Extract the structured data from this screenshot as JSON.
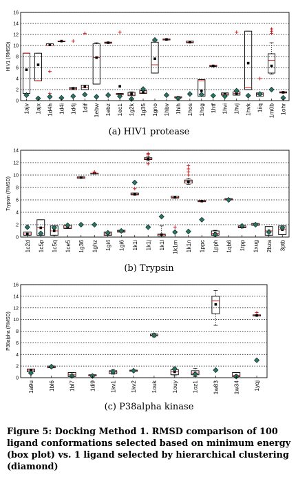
{
  "chart_data": [
    {
      "type": "box",
      "caption": "(a) HIV1 protease",
      "ylabel": "HIV1 (RMSD)",
      "ylim": [
        0,
        16
      ],
      "yticks": [
        0,
        2,
        4,
        6,
        8,
        10,
        12,
        14,
        16
      ],
      "grid": true,
      "categories": [
        "1ajv",
        "1ajx",
        "1d4h",
        "1d4i",
        "1d4j",
        "1dif",
        "1ebw",
        "1ebz",
        "1ec1",
        "1g2k",
        "1g35",
        "1gno",
        "1hbv",
        "1hih",
        "1hos",
        "1hsg",
        "1htf",
        "1hvi",
        "1hvj",
        "1hvk",
        "1iiq",
        "1m0b",
        "1ohr"
      ],
      "boxes": [
        {
          "q1": 1.3,
          "q3": 8.6,
          "median": 8.6,
          "mean": 5.6,
          "wlo": 1.3,
          "whi": 8.6,
          "outliers": []
        },
        {
          "q1": 3.6,
          "q3": 8.6,
          "median": 3.6,
          "mean": 6.5,
          "wlo": 3.6,
          "whi": 8.6,
          "outliers": []
        },
        {
          "q1": 10.0,
          "q3": 10.3,
          "median": 10.0,
          "mean": 10.1,
          "wlo": 10.0,
          "whi": 10.3,
          "outliers": [
            5.3,
            1.3
          ]
        },
        {
          "q1": 10.8,
          "q3": 10.8,
          "median": 10.8,
          "mean": 10.8,
          "wlo": 10.8,
          "whi": 10.8,
          "outliers": []
        },
        {
          "q1": 2.0,
          "q3": 2.4,
          "median": 2.2,
          "mean": 2.2,
          "wlo": 2.0,
          "whi": 2.4,
          "outliers": [
            10.8
          ]
        },
        {
          "q1": 2.0,
          "q3": 2.8,
          "median": 2.4,
          "mean": 2.5,
          "wlo": 2.0,
          "whi": 2.8,
          "outliers": [
            12.2
          ]
        },
        {
          "q1": 3.0,
          "q3": 10.3,
          "median": 7.8,
          "mean": 7.8,
          "wlo": 3.0,
          "whi": 10.5,
          "outliers": []
        },
        {
          "q1": 10.4,
          "q3": 10.6,
          "median": 10.5,
          "mean": 10.5,
          "wlo": 10.4,
          "whi": 10.6,
          "outliers": []
        },
        {
          "q1": 1.1,
          "q3": 1.3,
          "median": 1.2,
          "mean": 2.6,
          "wlo": 1.1,
          "whi": 1.3,
          "outliers": [
            12.4
          ]
        },
        {
          "q1": 0.9,
          "q3": 1.5,
          "median": 1.2,
          "mean": 1.2,
          "wlo": 0.9,
          "whi": 1.6,
          "outliers": []
        },
        {
          "q1": 1.3,
          "q3": 1.8,
          "median": 1.5,
          "mean": 1.5,
          "wlo": 1.3,
          "whi": 1.8,
          "outliers": []
        },
        {
          "q1": 5.0,
          "q3": 10.6,
          "median": 6.5,
          "mean": 7.6,
          "wlo": 5.0,
          "whi": 10.8,
          "outliers": []
        },
        {
          "q1": 11.0,
          "q3": 11.2,
          "median": 11.1,
          "mean": 11.1,
          "wlo": 11.0,
          "whi": 11.2,
          "outliers": []
        },
        {
          "q1": 0.5,
          "q3": 0.7,
          "median": 0.6,
          "mean": 0.6,
          "wlo": 0.5,
          "whi": 0.7,
          "outliers": []
        },
        {
          "q1": 10.5,
          "q3": 10.8,
          "median": 10.6,
          "mean": 10.6,
          "wlo": 10.5,
          "whi": 10.8,
          "outliers": []
        },
        {
          "q1": 0.8,
          "q3": 3.8,
          "median": 3.6,
          "mean": 1.8,
          "wlo": 0.8,
          "whi": 3.8,
          "outliers": []
        },
        {
          "q1": 6.2,
          "q3": 6.4,
          "median": 6.3,
          "mean": 6.3,
          "wlo": 6.2,
          "whi": 6.4,
          "outliers": []
        },
        {
          "q1": 1.0,
          "q3": 1.4,
          "median": 1.2,
          "mean": 1.2,
          "wlo": 1.0,
          "whi": 1.4,
          "outliers": []
        },
        {
          "q1": 1.0,
          "q3": 1.6,
          "median": 1.3,
          "mean": 1.3,
          "wlo": 1.0,
          "whi": 1.6,
          "outliers": [
            12.4
          ]
        },
        {
          "q1": 2.0,
          "q3": 12.6,
          "median": 2.4,
          "mean": 6.8,
          "wlo": 2.0,
          "whi": 12.6,
          "outliers": []
        },
        {
          "q1": 0.8,
          "q3": 1.4,
          "median": 1.1,
          "mean": 1.1,
          "wlo": 0.8,
          "whi": 1.4,
          "outliers": [
            4.0
          ]
        },
        {
          "q1": 5.0,
          "q3": 8.5,
          "median": 7.3,
          "mean": 6.3,
          "wlo": 4.8,
          "whi": 10.5,
          "outliers": [
            12.2,
            12.6,
            13.0
          ]
        },
        {
          "q1": 1.4,
          "q3": 1.6,
          "median": 1.5,
          "mean": 1.5,
          "wlo": 1.4,
          "whi": 1.6,
          "outliers": []
        }
      ],
      "diamonds": [
        1.0,
        0.4,
        0.7,
        0.5,
        0.8,
        1.1,
        0.7,
        1.0,
        0.8,
        0.3,
        2.1,
        11.0,
        1.0,
        0.4,
        1.2,
        1.1,
        0.9,
        0.8,
        1.8,
        0.9,
        1.2,
        2.0,
        0.5
      ]
    },
    {
      "type": "box",
      "caption": "(b) Trypsin",
      "ylabel": "Trypsin (RMSD)",
      "ylim": [
        0,
        14
      ],
      "yticks": [
        0,
        2,
        4,
        6,
        8,
        10,
        12,
        14
      ],
      "grid": true,
      "categories": [
        "1c2d",
        "1c5p",
        "1c5q",
        "1ce5",
        "1g36",
        "1ghz",
        "1gi4",
        "1gi6",
        "1k1i",
        "1k1j",
        "1k1l",
        "1k1m",
        "1k1n",
        "1ppc",
        "1pph",
        "1qb6",
        "1tpp",
        "1xug",
        "2bza",
        "3ptb"
      ],
      "boxes": [
        {
          "q1": 0.3,
          "q3": 0.8,
          "median": 0.5,
          "mean": 0.5,
          "wlo": 0.3,
          "whi": 0.8,
          "outliers": []
        },
        {
          "q1": 0.3,
          "q3": 2.8,
          "median": 1.5,
          "mean": 1.5,
          "wlo": 0.3,
          "whi": 2.8,
          "outliers": []
        },
        {
          "q1": 0.3,
          "q3": 1.8,
          "median": 1.0,
          "mean": 1.0,
          "wlo": 0.3,
          "whi": 1.8,
          "outliers": []
        },
        {
          "q1": 1.4,
          "q3": 1.9,
          "median": 1.6,
          "mean": 1.6,
          "wlo": 1.4,
          "whi": 1.9,
          "outliers": []
        },
        {
          "q1": 9.5,
          "q3": 9.7,
          "median": 9.6,
          "mean": 9.6,
          "wlo": 9.5,
          "whi": 9.7,
          "outliers": []
        },
        {
          "q1": 10.3,
          "q3": 10.3,
          "median": 10.3,
          "mean": 10.3,
          "wlo": 10.3,
          "whi": 10.3,
          "outliers": [
            10.5
          ]
        },
        {
          "q1": 0.3,
          "q3": 0.8,
          "median": 0.5,
          "mean": 0.5,
          "wlo": 0.3,
          "whi": 0.8,
          "outliers": []
        },
        {
          "q1": 0.8,
          "q3": 1.1,
          "median": 0.9,
          "mean": 0.9,
          "wlo": 0.8,
          "whi": 1.1,
          "outliers": []
        },
        {
          "q1": 6.8,
          "q3": 7.1,
          "median": 6.9,
          "mean": 6.9,
          "wlo": 6.8,
          "whi": 7.1,
          "outliers": [
            7.8
          ]
        },
        {
          "q1": 12.5,
          "q3": 12.8,
          "median": 12.6,
          "mean": 12.6,
          "wlo": 12.3,
          "whi": 13.0,
          "outliers": [
            11.8,
            13.3,
            13.5
          ]
        },
        {
          "q1": 0.2,
          "q3": 0.5,
          "median": 0.4,
          "mean": 0.4,
          "wlo": 0.0,
          "whi": 1.8,
          "outliers": []
        },
        {
          "q1": 6.3,
          "q3": 6.6,
          "median": 6.4,
          "mean": 6.4,
          "wlo": 6.3,
          "whi": 6.6,
          "outliers": [
            1.6
          ]
        },
        {
          "q1": 8.7,
          "q3": 9.2,
          "median": 9.0,
          "mean": 8.9,
          "wlo": 8.5,
          "whi": 9.5,
          "outliers": [
            10.0,
            10.5,
            11.0,
            11.5
          ]
        },
        {
          "q1": 5.7,
          "q3": 5.9,
          "median": 5.8,
          "mean": 5.8,
          "wlo": 5.7,
          "whi": 5.9,
          "outliers": []
        },
        {
          "q1": 0.3,
          "q3": 1.0,
          "median": 0.6,
          "mean": 0.6,
          "wlo": 0.2,
          "whi": 1.1,
          "outliers": []
        },
        {
          "q1": 6.0,
          "q3": 6.2,
          "median": 6.1,
          "mean": 6.1,
          "wlo": 6.0,
          "whi": 6.2,
          "outliers": []
        },
        {
          "q1": 1.5,
          "q3": 1.8,
          "median": 1.6,
          "mean": 1.6,
          "wlo": 1.5,
          "whi": 1.8,
          "outliers": []
        },
        {
          "q1": 1.9,
          "q3": 2.2,
          "median": 2.0,
          "mean": 2.0,
          "wlo": 1.9,
          "whi": 2.2,
          "outliers": []
        },
        {
          "q1": 0.3,
          "q3": 1.7,
          "median": 1.0,
          "mean": 1.0,
          "wlo": 0.3,
          "whi": 1.7,
          "outliers": []
        },
        {
          "q1": 0.4,
          "q3": 1.8,
          "median": 1.2,
          "mean": 1.2,
          "wlo": 0.4,
          "whi": 1.8,
          "outliers": []
        }
      ],
      "diamonds": [
        1.6,
        0.6,
        1.5,
        1.9,
        2.0,
        2.0,
        0.7,
        1.0,
        8.8,
        1.6,
        3.3,
        0.8,
        0.9,
        2.8,
        0.4,
        6.0,
        1.8,
        2.0,
        0.8,
        1.5
      ]
    },
    {
      "type": "box",
      "caption": "(c) P38alpha kinase",
      "ylabel": "P38alpha (RMSD)",
      "ylim": [
        0,
        16
      ],
      "yticks": [
        0,
        2,
        4,
        6,
        8,
        10,
        12,
        14,
        16
      ],
      "grid": true,
      "categories": [
        "1a9u",
        "1bl6",
        "1bl7",
        "1di9",
        "1kv1",
        "1kv2",
        "1ouk",
        "1ouy",
        "1oz1",
        "1w83",
        "1w34",
        "1yqj"
      ],
      "boxes": [
        {
          "q1": 1.0,
          "q3": 1.5,
          "median": 1.3,
          "mean": 1.3,
          "wlo": 1.0,
          "whi": 1.5,
          "outliers": []
        },
        {
          "q1": 1.7,
          "q3": 2.0,
          "median": 1.8,
          "mean": 1.8,
          "wlo": 1.7,
          "whi": 2.0,
          "outliers": []
        },
        {
          "q1": 0.2,
          "q3": 0.9,
          "median": 0.5,
          "mean": 0.5,
          "wlo": 0.2,
          "whi": 0.9,
          "outliers": []
        },
        {
          "q1": 0.3,
          "q3": 0.5,
          "median": 0.4,
          "mean": 0.4,
          "wlo": 0.3,
          "whi": 0.5,
          "outliers": []
        },
        {
          "q1": 0.7,
          "q3": 1.2,
          "median": 1.0,
          "mean": 1.0,
          "wlo": 0.6,
          "whi": 1.4,
          "outliers": []
        },
        {
          "q1": 1.1,
          "q3": 1.3,
          "median": 1.2,
          "mean": 1.2,
          "wlo": 1.1,
          "whi": 1.3,
          "outliers": []
        },
        {
          "q1": 7.2,
          "q3": 7.5,
          "median": 7.3,
          "mean": 7.3,
          "wlo": 7.0,
          "whi": 7.6,
          "outliers": []
        },
        {
          "q1": 0.5,
          "q3": 1.4,
          "median": 1.0,
          "mean": 1.0,
          "wlo": 0.3,
          "whi": 1.8,
          "outliers": []
        },
        {
          "q1": 0.5,
          "q3": 1.2,
          "median": 0.8,
          "mean": 0.8,
          "wlo": 0.2,
          "whi": 1.6,
          "outliers": []
        },
        {
          "q1": 11.0,
          "q3": 14.0,
          "median": 13.2,
          "mean": 12.6,
          "wlo": 9.0,
          "whi": 15.0,
          "outliers": []
        },
        {
          "q1": 0.2,
          "q3": 0.9,
          "median": 0.4,
          "mean": 0.4,
          "wlo": 0.2,
          "whi": 0.9,
          "outliers": []
        },
        {
          "q1": 10.6,
          "q3": 10.8,
          "median": 10.7,
          "mean": 10.7,
          "wlo": 10.6,
          "whi": 10.8,
          "outliers": [
            11.2
          ]
        }
      ],
      "diamonds": [
        0.8,
        1.9,
        0.3,
        0.3,
        1.0,
        1.2,
        7.3,
        1.5,
        0.6,
        1.3,
        0.2,
        3.0
      ]
    }
  ],
  "figure_caption": "Figure 5: Docking Method 1. RMSD comparison of 100 ligand conformations selected based on minimum energy (box plot) vs. 1 ligand selected by hierarchical clustering (diamond)",
  "colors": {
    "box": "#000000",
    "outlier": "#cc2222",
    "diamond_fill": "#2e7466",
    "diamond_stroke": "#0c2a24",
    "grid": "#000000",
    "mean": "#000000"
  }
}
